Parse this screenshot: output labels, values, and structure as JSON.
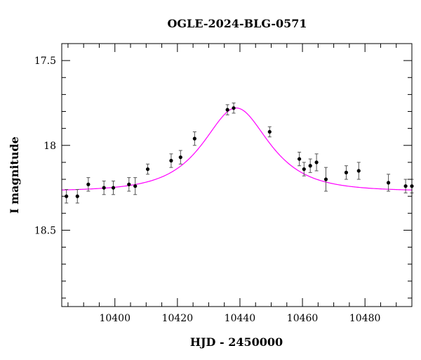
{
  "chart_data": {
    "type": "scatter",
    "title": "OGLE-2024-BLG-0571",
    "xlabel": "HJD - 2450000",
    "ylabel": "I magnitude",
    "xlim": [
      10383,
      10495
    ],
    "ylim": [
      18.95,
      17.4
    ],
    "y_inverted": true,
    "grid": false,
    "x_ticks": [
      10400,
      10420,
      10440,
      10460,
      10480
    ],
    "y_ticks": [
      17.5,
      18,
      18.5
    ],
    "x_tick_labels": [
      "10400",
      "10420",
      "10440",
      "10460",
      "10480"
    ],
    "y_tick_labels": [
      "17.5",
      "18",
      "18.5"
    ],
    "colors": {
      "model": "#ff00ff",
      "points": "#000000",
      "errorbars": "#555555",
      "axes": "#000000"
    },
    "series": [
      {
        "type": "scatter_errorbar",
        "points": [
          {
            "x": 10384.5,
            "y": 18.3,
            "err": 0.04
          },
          {
            "x": 10388.0,
            "y": 18.3,
            "err": 0.04
          },
          {
            "x": 10391.5,
            "y": 18.23,
            "err": 0.04
          },
          {
            "x": 10396.5,
            "y": 18.25,
            "err": 0.04
          },
          {
            "x": 10399.5,
            "y": 18.25,
            "err": 0.04
          },
          {
            "x": 10404.5,
            "y": 18.23,
            "err": 0.04
          },
          {
            "x": 10406.5,
            "y": 18.24,
            "err": 0.05
          },
          {
            "x": 10410.5,
            "y": 18.14,
            "err": 0.03
          },
          {
            "x": 10418.0,
            "y": 18.09,
            "err": 0.04
          },
          {
            "x": 10421.0,
            "y": 18.07,
            "err": 0.04
          },
          {
            "x": 10425.5,
            "y": 17.96,
            "err": 0.04
          },
          {
            "x": 10436.0,
            "y": 17.79,
            "err": 0.03
          },
          {
            "x": 10438.0,
            "y": 17.78,
            "err": 0.03
          },
          {
            "x": 10449.5,
            "y": 17.92,
            "err": 0.03
          },
          {
            "x": 10459.0,
            "y": 18.08,
            "err": 0.04
          },
          {
            "x": 10460.5,
            "y": 18.14,
            "err": 0.04
          },
          {
            "x": 10462.5,
            "y": 18.12,
            "err": 0.04
          },
          {
            "x": 10464.5,
            "y": 18.1,
            "err": 0.05
          },
          {
            "x": 10467.5,
            "y": 18.2,
            "err": 0.07
          },
          {
            "x": 10474.0,
            "y": 18.16,
            "err": 0.04
          },
          {
            "x": 10478.0,
            "y": 18.15,
            "err": 0.05
          },
          {
            "x": 10487.5,
            "y": 18.22,
            "err": 0.05
          },
          {
            "x": 10493.0,
            "y": 18.24,
            "err": 0.04
          },
          {
            "x": 10495.0,
            "y": 18.24,
            "err": 0.04
          }
        ]
      },
      {
        "type": "model_curve",
        "t0": 10438.8,
        "u0": 0.77,
        "tE": 14.5,
        "baseline_mag": 18.27,
        "x_range": [
          10383,
          10495
        ]
      }
    ]
  }
}
